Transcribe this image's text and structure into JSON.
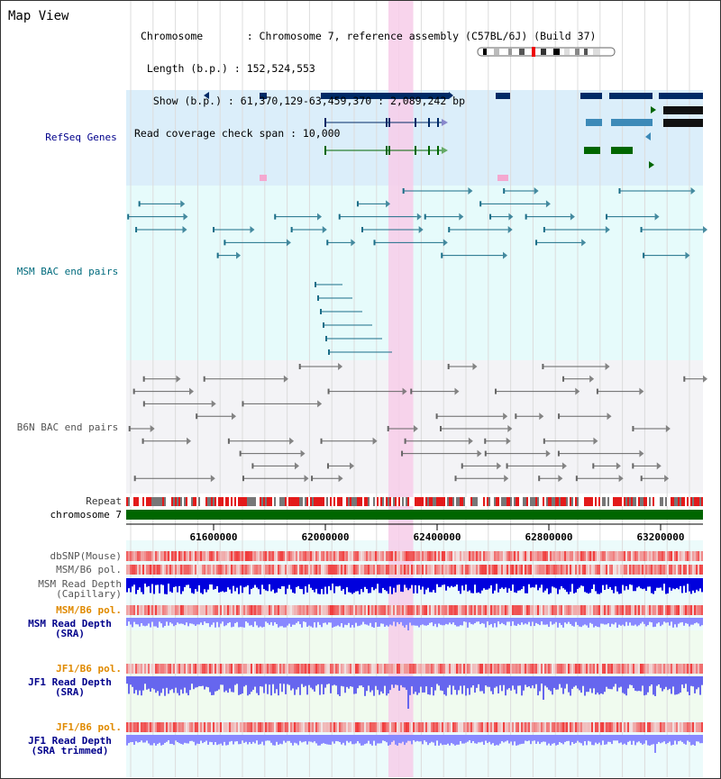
{
  "title": "Map View",
  "info": {
    "chromosome": "Chromosome       : Chromosome 7, reference assembly (C57BL/6J) (Build 37)",
    "length": " Length (b.p.) : 152,524,553",
    "show": "  Show (b.p.) : 61,370,129-63,459,370 : 2,089,242 bp",
    "coverage": "Read coverage check span : 10,000"
  },
  "tracks": {
    "refseq": "RefSeq Genes",
    "msm_bac": "MSM BAC end pairs",
    "b6n_bac": "B6N BAC end pairs",
    "repeat": "Repeat",
    "chromosome": "chromosome 7",
    "dbsnp": "dbSNP(Mouse)",
    "msm_b6_pol": "MSM/B6 pol.",
    "msm_depth_cap": "MSM Read Depth\n(Capillary)",
    "msm_b6_pol2": "MSM/B6 pol.",
    "msm_depth_sra": "MSM Read Depth\n(SRA)",
    "jf1_b6_pol": "JF1/B6 pol.",
    "jf1_depth_sra": "JF1 Read Depth\n(SRA)",
    "jf1_b6_pol2": "JF1/B6 pol.",
    "jf1_depth_trim": "JF1 Read Depth\n(SRA trimmed)"
  },
  "axis": {
    "ticks": [
      "61600000",
      "62000000",
      "62400000",
      "62800000",
      "63200000"
    ]
  },
  "colors": {
    "navy_label": "#00008b",
    "teal_label": "#006b7d",
    "gray_label": "#555555",
    "orange_label": "#e08a00",
    "refseq_bg": "#dbeefa",
    "msm_bg": "#e6fbfb",
    "b6n_bg": "#f3f3f6",
    "highlight": "#f7cde9",
    "chrom_green": "#006600"
  },
  "highlight_range_bp": [
    62320000,
    62410000
  ],
  "view_range_bp": [
    61370129,
    63459370
  ]
}
